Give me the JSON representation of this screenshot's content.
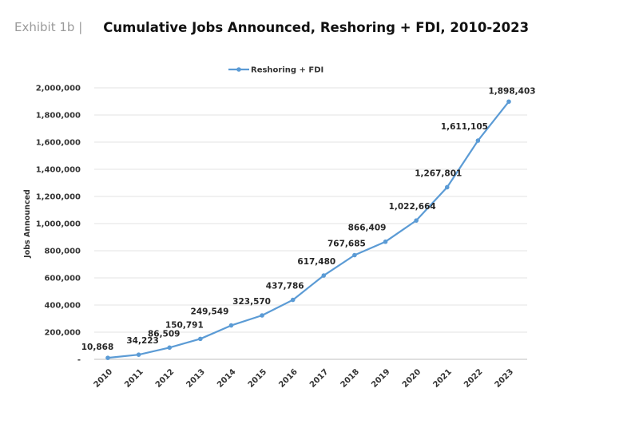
{
  "header": {
    "exhibit": "Exhibit 1b |",
    "title": "Cumulative Jobs Announced, Reshoring + FDI, 2010-2023"
  },
  "chart_data": {
    "type": "line",
    "title": "Cumulative Jobs Announced, Reshoring + FDI, 2010-2023",
    "xlabel": "",
    "ylabel": "Jobs Announced",
    "categories": [
      "2010",
      "2011",
      "2012",
      "2013",
      "2014",
      "2015",
      "2016",
      "2017",
      "2018",
      "2019",
      "2020",
      "2021",
      "2022",
      "2023"
    ],
    "series": [
      {
        "name": "Reshoring + FDI",
        "color": "#5b9bd5",
        "values": [
          10868,
          34223,
          86509,
          150791,
          249549,
          323570,
          437786,
          617480,
          767685,
          866409,
          1022664,
          1267801,
          1611105,
          1898403
        ],
        "labels": [
          "10,868",
          "34,223",
          "86,509",
          "150,791",
          "249,549",
          "323,570",
          "437,786",
          "617,480",
          "767,685",
          "866,409",
          "1,022,664",
          "1,267,801",
          "1,611,105",
          "1,898,403"
        ]
      }
    ],
    "yticks": [
      {
        "value": 0,
        "label": "-"
      },
      {
        "value": 200000,
        "label": "200,000"
      },
      {
        "value": 400000,
        "label": "400,000"
      },
      {
        "value": 600000,
        "label": "600,000"
      },
      {
        "value": 800000,
        "label": "800,000"
      },
      {
        "value": 1000000,
        "label": "1,000,000"
      },
      {
        "value": 1200000,
        "label": "1,200,000"
      },
      {
        "value": 1400000,
        "label": "1,400,000"
      },
      {
        "value": 1600000,
        "label": "1,600,000"
      },
      {
        "value": 1800000,
        "label": "1,800,000"
      },
      {
        "value": 2000000,
        "label": "2,000,000"
      }
    ],
    "ylim": [
      0,
      2000000
    ],
    "grid": true,
    "legend": "top-center"
  }
}
